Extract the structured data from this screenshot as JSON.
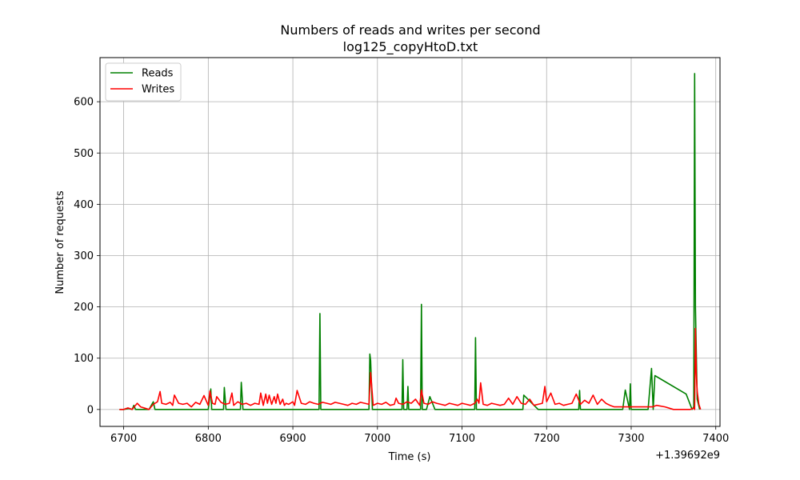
{
  "chart_data": {
    "type": "line",
    "title": "Numbers of reads and writes per second",
    "subtitle": "log125_copyHtoD.txt",
    "xlabel": "Time (s)",
    "ylabel": "Number of requests",
    "x_offset_label": "+1.39692e9",
    "xlim": [
      6672,
      7405
    ],
    "ylim": [
      -33,
      686
    ],
    "xticks": [
      6700,
      6800,
      6900,
      7000,
      7100,
      7200,
      7300,
      7400
    ],
    "yticks": [
      0,
      100,
      200,
      300,
      400,
      500,
      600
    ],
    "grid": true,
    "legend_position": "upper-left",
    "series": [
      {
        "name": "Reads",
        "color": "#008000",
        "x": [
          6695,
          6700,
          6706,
          6710,
          6712,
          6714,
          6718,
          6730,
          6735,
          6737,
          6740,
          6750,
          6770,
          6790,
          6800,
          6803,
          6804,
          6806,
          6812,
          6818,
          6819,
          6821,
          6828,
          6838,
          6839,
          6841,
          6850,
          6870,
          6890,
          6900,
          6910,
          6920,
          6931,
          6932,
          6933,
          6936,
          6950,
          6970,
          6980,
          6990,
          6991,
          6992,
          6994,
          7000,
          7020,
          7029,
          7030,
          7031,
          7035,
          7036,
          7037,
          7045,
          7051,
          7052,
          7053,
          7058,
          7062,
          7068,
          7080,
          7100,
          7115,
          7116,
          7117,
          7120,
          7140,
          7160,
          7172,
          7173,
          7190,
          7200,
          7220,
          7238,
          7239,
          7240,
          7260,
          7275,
          7290,
          7293,
          7298,
          7299,
          7300,
          7320,
          7324,
          7326,
          7328,
          7365,
          7372,
          7374,
          7375,
          7376,
          7378,
          7381
        ],
        "values": [
          0,
          0,
          2,
          0,
          8,
          0,
          0,
          0,
          15,
          0,
          0,
          0,
          0,
          0,
          0,
          40,
          0,
          0,
          0,
          0,
          43,
          0,
          0,
          0,
          53,
          0,
          0,
          0,
          0,
          0,
          0,
          0,
          0,
          187,
          0,
          0,
          0,
          0,
          0,
          0,
          108,
          95,
          0,
          0,
          0,
          0,
          97,
          0,
          0,
          45,
          0,
          0,
          0,
          205,
          0,
          0,
          25,
          0,
          0,
          0,
          0,
          140,
          0,
          0,
          0,
          0,
          0,
          28,
          0,
          0,
          0,
          0,
          37,
          0,
          0,
          0,
          0,
          38,
          0,
          50,
          0,
          0,
          80,
          0,
          66,
          30,
          0,
          5,
          655,
          200,
          20,
          0
        ]
      },
      {
        "name": "Writes",
        "color": "#ff0000",
        "x": [
          6695,
          6700,
          6705,
          6710,
          6716,
          6720,
          6730,
          6735,
          6740,
          6743,
          6745,
          6750,
          6755,
          6758,
          6760,
          6765,
          6770,
          6775,
          6780,
          6785,
          6790,
          6795,
          6800,
          6802,
          6805,
          6808,
          6810,
          6815,
          6820,
          6825,
          6828,
          6830,
          6835,
          6840,
          6845,
          6850,
          6855,
          6860,
          6862,
          6865,
          6868,
          6870,
          6872,
          6875,
          6878,
          6880,
          6882,
          6885,
          6888,
          6890,
          6892,
          6895,
          6900,
          6902,
          6905,
          6910,
          6915,
          6920,
          6925,
          6930,
          6935,
          6940,
          6945,
          6950,
          6955,
          6960,
          6965,
          6970,
          6975,
          6980,
          6985,
          6990,
          6992,
          6995,
          7000,
          7005,
          7010,
          7015,
          7020,
          7022,
          7025,
          7030,
          7035,
          7040,
          7045,
          7050,
          7052,
          7055,
          7060,
          7065,
          7070,
          7075,
          7080,
          7085,
          7090,
          7095,
          7100,
          7105,
          7110,
          7115,
          7118,
          7120,
          7122,
          7125,
          7130,
          7135,
          7140,
          7145,
          7150,
          7155,
          7160,
          7165,
          7170,
          7175,
          7180,
          7185,
          7190,
          7195,
          7198,
          7200,
          7205,
          7210,
          7215,
          7220,
          7225,
          7230,
          7235,
          7240,
          7245,
          7250,
          7255,
          7260,
          7265,
          7270,
          7275,
          7280,
          7290,
          7300,
          7310,
          7320,
          7325,
          7330,
          7340,
          7350,
          7360,
          7370,
          7374,
          7375,
          7376,
          7377,
          7378,
          7380,
          7382
        ],
        "values": [
          0,
          0,
          3,
          0,
          12,
          5,
          0,
          10,
          15,
          35,
          12,
          10,
          14,
          8,
          28,
          12,
          10,
          12,
          5,
          14,
          10,
          27,
          8,
          36,
          12,
          10,
          25,
          14,
          10,
          12,
          32,
          8,
          15,
          10,
          12,
          8,
          12,
          10,
          32,
          8,
          30,
          12,
          28,
          10,
          25,
          12,
          30,
          10,
          20,
          8,
          12,
          10,
          15,
          8,
          37,
          12,
          10,
          15,
          12,
          10,
          14,
          12,
          10,
          14,
          12,
          10,
          8,
          12,
          10,
          14,
          12,
          10,
          72,
          8,
          12,
          10,
          14,
          8,
          10,
          22,
          12,
          10,
          15,
          12,
          20,
          8,
          38,
          12,
          10,
          15,
          12,
          10,
          8,
          12,
          10,
          8,
          12,
          10,
          8,
          12,
          20,
          12,
          52,
          10,
          8,
          12,
          10,
          8,
          10,
          22,
          10,
          25,
          12,
          10,
          20,
          8,
          10,
          12,
          45,
          15,
          32,
          10,
          12,
          8,
          10,
          12,
          30,
          10,
          18,
          12,
          28,
          10,
          20,
          12,
          8,
          5,
          5,
          5,
          5,
          5,
          5,
          8,
          5,
          0,
          0,
          0,
          3,
          0,
          158,
          70,
          35,
          10,
          0
        ]
      }
    ]
  }
}
